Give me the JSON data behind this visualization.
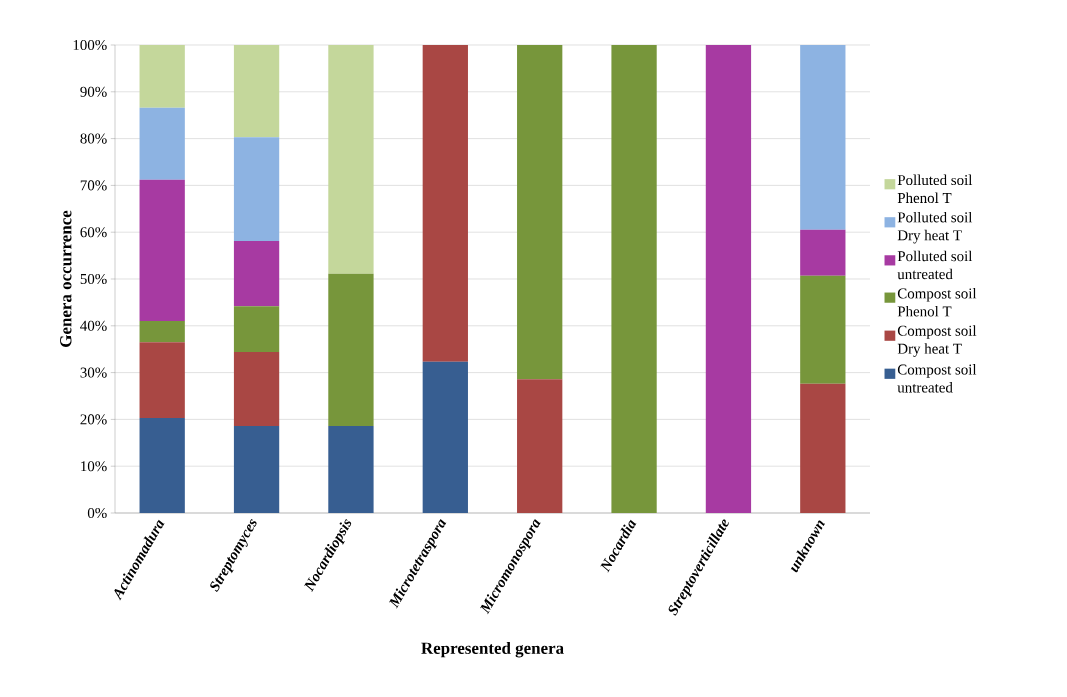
{
  "chart_data": {
    "type": "bar",
    "stacked": true,
    "xlabel": "Represented genera",
    "ylabel": "Genera occurrence",
    "categories": [
      "Actinomadura",
      "Streptomyces",
      "Nocardiopsis",
      "Microtetraspora",
      "Micromonospora",
      "Nocardia",
      "Streptoverticillate",
      "unknown"
    ],
    "series": [
      {
        "name": "Compost soil untreated",
        "color": "#375e91",
        "values": [
          20.3,
          18.6,
          18.6,
          32.3,
          0,
          0,
          0,
          0
        ]
      },
      {
        "name": "Compost soil Dry heat T",
        "color": "#a94744",
        "values": [
          16.2,
          15.8,
          0,
          67.7,
          28.6,
          0,
          0,
          27.6
        ]
      },
      {
        "name": "Compost soil Phenol T",
        "color": "#77963b",
        "values": [
          4.5,
          9.8,
          32.5,
          0,
          71.4,
          100,
          0,
          23.1
        ]
      },
      {
        "name": "Polluted soil untreated",
        "color": "#a73aa2",
        "values": [
          30.2,
          13.9,
          0,
          0,
          0,
          0,
          100,
          9.8
        ]
      },
      {
        "name": "Polluted soil Dry heat T",
        "color": "#8db3e2",
        "values": [
          15.4,
          22.2,
          0,
          0,
          0,
          0,
          0,
          39.5
        ]
      },
      {
        "name": "Polluted soil Phenol T",
        "color": "#c4d79b",
        "values": [
          13.5,
          19.7,
          48.9,
          0,
          0,
          0,
          0,
          0
        ]
      }
    ],
    "ylim": [
      0,
      100
    ],
    "yticks": [
      {
        "value": 0,
        "label": "0%"
      },
      {
        "value": 10,
        "label": "10%"
      },
      {
        "value": 20,
        "label": "20%"
      },
      {
        "value": 30,
        "label": "30%"
      },
      {
        "value": 40,
        "label": "40%"
      },
      {
        "value": 50,
        "label": "50%"
      },
      {
        "value": 60,
        "label": "60%"
      },
      {
        "value": 70,
        "label": "70%"
      },
      {
        "value": 80,
        "label": "80%"
      },
      {
        "value": 90,
        "label": "90%"
      },
      {
        "value": 100,
        "label": "100%"
      }
    ],
    "grid": "y",
    "legend": "right"
  }
}
